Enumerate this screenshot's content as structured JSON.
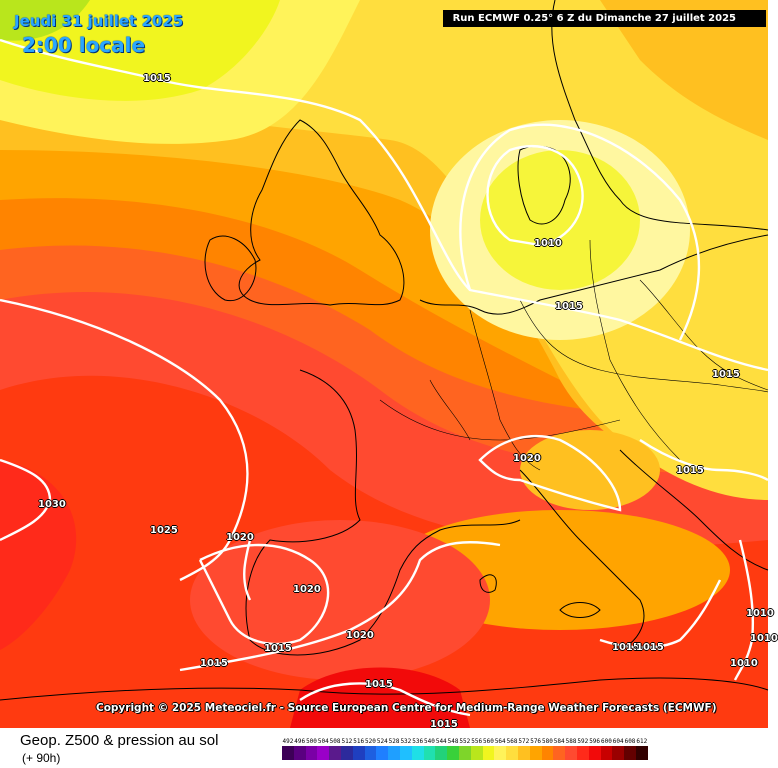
{
  "header": {
    "date": "Jeudi 31 juillet 2025",
    "time": "2:00 locale",
    "run": "Run ECMWF 0.25° 6 Z du Dimanche 27 juillet 2025"
  },
  "copyright": "Copyright © 2025 Meteociel.fr - Source European Centre for Medium-Range Weather Forecasts (ECMWF)",
  "footer": {
    "product": "Geop. Z500 & pression au sol",
    "lead": "(+ 90h)"
  },
  "isobar_labels": [
    "1015",
    "1010",
    "1015",
    "1015",
    "1020",
    "1015",
    "1030",
    "1025",
    "1020",
    "1020",
    "1020",
    "1015",
    "1015",
    "1015",
    "1015",
    "1015",
    "1015",
    "1010",
    "1010",
    "1010"
  ],
  "scale": {
    "labels": [
      "492",
      "496",
      "500",
      "504",
      "508",
      "512",
      "516",
      "520",
      "524",
      "528",
      "532",
      "536",
      "540",
      "544",
      "548",
      "552",
      "556",
      "560",
      "564",
      "568",
      "572",
      "576",
      "580",
      "584",
      "588",
      "592",
      "596",
      "600",
      "604",
      "608",
      "612"
    ],
    "colors": [
      "#3d0057",
      "#5a0080",
      "#7a00a6",
      "#9a00c8",
      "#5a1a8c",
      "#2c2a9c",
      "#1f3fc0",
      "#1e5fe0",
      "#1f7fff",
      "#1f9fff",
      "#1fbfff",
      "#1fdfe6",
      "#20e0b0",
      "#22d27a",
      "#39d13a",
      "#7ed52a",
      "#b9e61c",
      "#f1f51f",
      "#fff35a",
      "#ffde3e",
      "#ffc020",
      "#ffa400",
      "#ff8400",
      "#ff6420",
      "#ff4a30",
      "#ff2a1a",
      "#f20a0a",
      "#c80000",
      "#9a0000",
      "#640000",
      "#320000"
    ]
  }
}
